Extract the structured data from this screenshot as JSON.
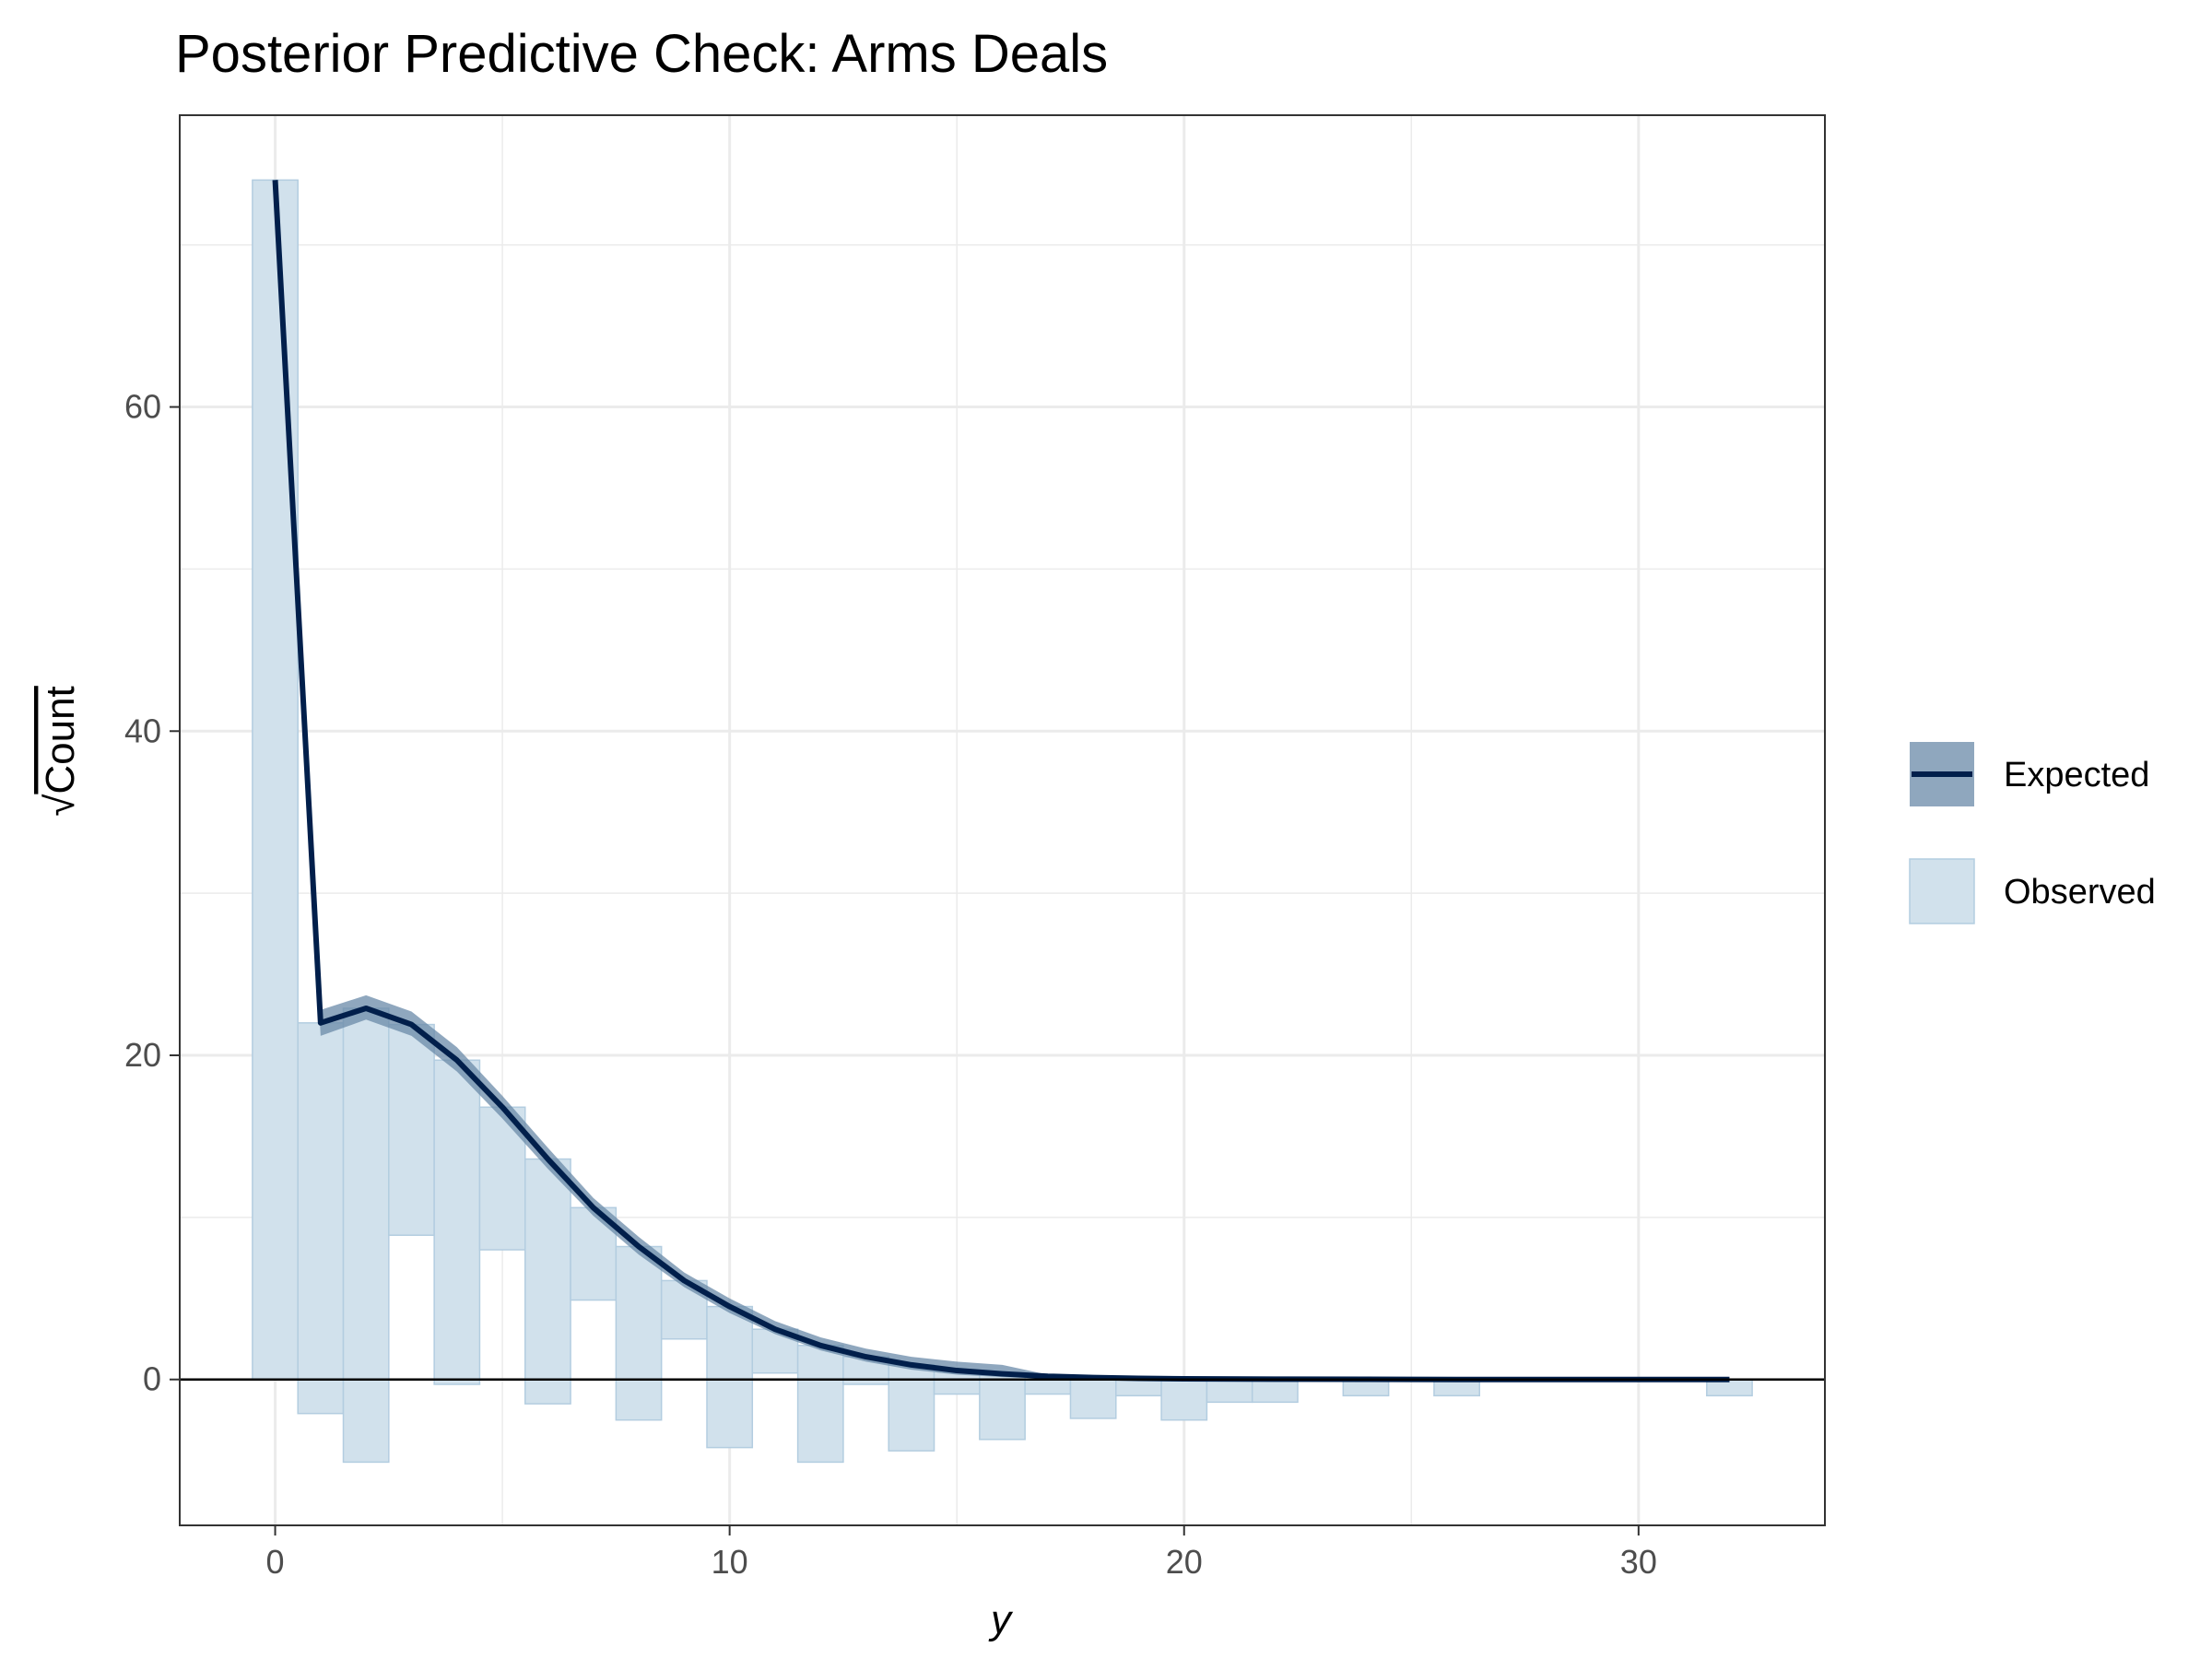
{
  "chart_data": {
    "type": "rootogram",
    "title": "Posterior Predictive Check: Arms Deals",
    "xlabel": "y",
    "ylabel_radical": "√",
    "ylabel": "Count",
    "x_ticks": [
      0,
      10,
      20,
      30
    ],
    "y_ticks": [
      0,
      20,
      40,
      60
    ],
    "xlim": [
      -2.1,
      34.1
    ],
    "ylim": [
      -9,
      78
    ],
    "grid": true,
    "legend_position": "right",
    "colors": {
      "expected_line": "#011f4b",
      "expected_band": "#6a8aa8",
      "observed_fill": "#d1e1ec",
      "observed_edge": "#b3cde0",
      "grid": "#ebebeb",
      "zero_line": "#000000"
    },
    "expected": {
      "x": [
        0,
        1,
        2,
        3,
        4,
        5,
        6,
        7,
        8,
        9,
        10,
        11,
        12,
        13,
        14,
        15,
        16,
        17,
        18,
        19,
        20,
        22,
        24,
        26,
        28,
        30,
        32
      ],
      "mean": [
        74,
        22.0,
        22.9,
        21.9,
        19.7,
        16.8,
        13.6,
        10.6,
        8.2,
        6.1,
        4.5,
        3.1,
        2.1,
        1.4,
        0.9,
        0.55,
        0.35,
        0.2,
        0.12,
        0.07,
        0.04,
        0.02,
        0.01,
        0.0,
        0.0,
        0.0,
        0.0
      ],
      "lower": [
        74,
        21.2,
        22.2,
        21.2,
        19.0,
        16.1,
        13.0,
        10.1,
        7.7,
        5.7,
        4.1,
        2.8,
        1.8,
        1.1,
        0.6,
        0.3,
        0.15,
        0.05,
        0.0,
        0.0,
        0.0,
        0.0,
        0.0,
        0.0,
        0.0,
        0.0,
        0.0
      ],
      "upper": [
        74,
        22.8,
        23.7,
        22.7,
        20.5,
        17.5,
        14.3,
        11.2,
        8.8,
        6.6,
        5.0,
        3.6,
        2.6,
        1.9,
        1.4,
        1.1,
        0.9,
        0.3,
        0.2,
        0.1,
        0.08,
        0.04,
        0.02,
        0.01,
        0.0,
        0.0,
        0.0
      ]
    },
    "observed": {
      "x": [
        0,
        1,
        2,
        3,
        4,
        5,
        6,
        7,
        8,
        9,
        10,
        11,
        12,
        13,
        14,
        15,
        16,
        17,
        18,
        19,
        20,
        21,
        22,
        24,
        26,
        32
      ],
      "top": [
        74,
        22.0,
        22.9,
        21.9,
        19.7,
        16.8,
        13.6,
        10.6,
        8.2,
        6.1,
        4.5,
        3.1,
        2.1,
        1.4,
        0.9,
        0.55,
        0.35,
        0.2,
        0.12,
        0.07,
        0.04,
        0.0,
        0.0,
        0.0,
        0.0,
        0.0
      ],
      "bottom": [
        0,
        -2.1,
        -5.1,
        8.9,
        -0.3,
        8.0,
        -1.5,
        4.9,
        -2.5,
        2.5,
        -4.2,
        0.4,
        -5.1,
        -0.3,
        -4.4,
        -0.9,
        -3.7,
        -0.9,
        -2.4,
        -1.0,
        -2.5,
        -1.4,
        -1.4,
        -1.0,
        -1.0,
        -1.0
      ]
    },
    "legend": [
      {
        "key": "expected",
        "label": "Expected"
      },
      {
        "key": "observed",
        "label": "Observed"
      }
    ]
  }
}
